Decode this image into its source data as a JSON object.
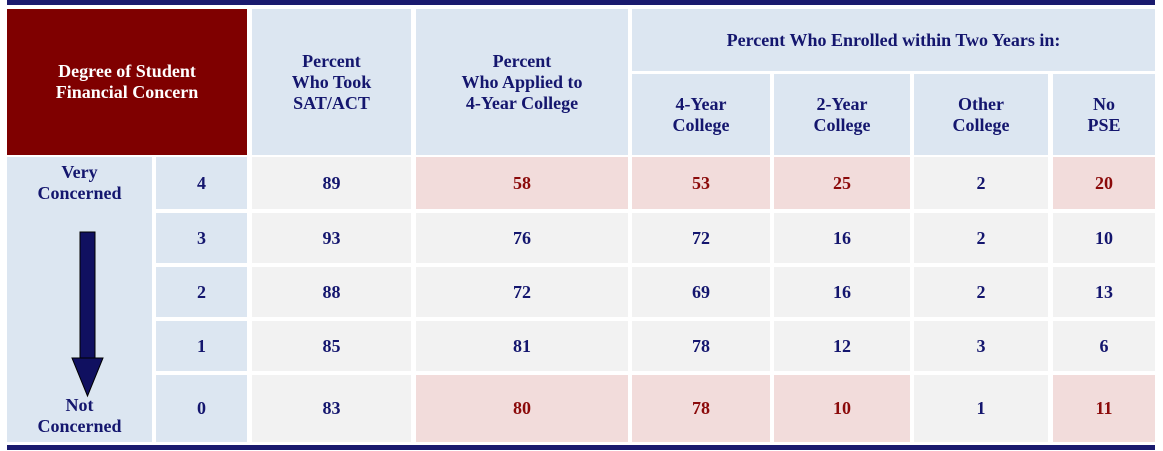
{
  "header": {
    "degree": "Degree of Student\nFinancial Concern",
    "took": "Percent\nWho Took\nSAT/ACT",
    "applied": "Percent\nWho Applied to\n4-Year College",
    "enrolled": "Percent Who Enrolled within Two Years in:",
    "sub": [
      "4-Year\nCollege",
      "2-Year\nCollege",
      "Other\nCollege",
      "No\nPSE"
    ]
  },
  "scale": {
    "top": "Very\nConcerned",
    "bottom": "Not\nConcerned"
  },
  "table": {
    "rows": [
      {
        "level": 4,
        "values": [
          89,
          58,
          53,
          25,
          2,
          20
        ]
      },
      {
        "level": 3,
        "values": [
          93,
          76,
          72,
          16,
          2,
          10
        ]
      },
      {
        "level": 2,
        "values": [
          88,
          72,
          69,
          16,
          2,
          13
        ]
      },
      {
        "level": 1,
        "values": [
          85,
          81,
          78,
          12,
          3,
          6
        ]
      },
      {
        "level": 0,
        "values": [
          83,
          80,
          78,
          10,
          1,
          11
        ]
      }
    ]
  }
}
